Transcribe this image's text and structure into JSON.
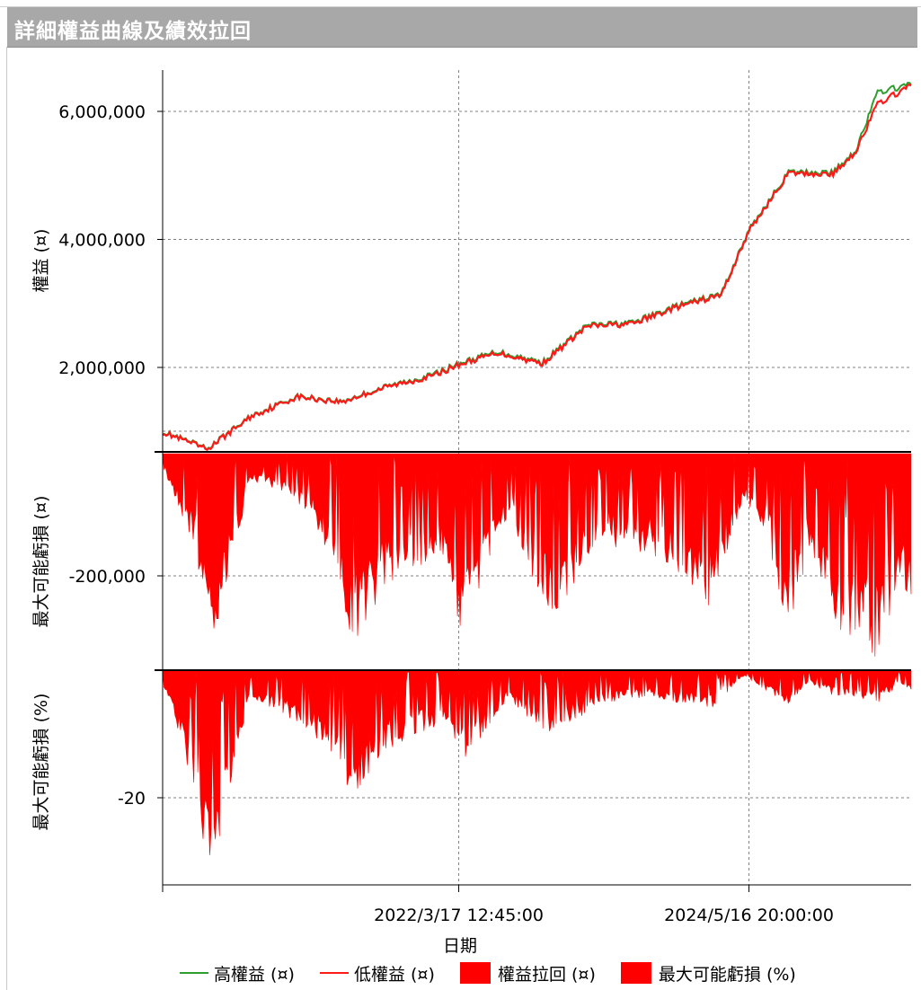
{
  "window": {
    "title": "詳細權益曲線及績效拉回"
  },
  "colors": {
    "high_equity": "#2e9e2e",
    "low_equity": "#ff1a1a",
    "drawdown_fill": "#ff0000",
    "grid": "#808080"
  },
  "chart_data": [
    {
      "type": "line",
      "panel": "equity",
      "ylabel": "權益 (¤)",
      "yticks": [
        "6,000,000",
        "4,000,000",
        "2,000,000"
      ],
      "ylim": [
        0,
        6650000
      ],
      "x": [
        "2020/1/2",
        "2020/5/1",
        "2020/9/1",
        "2021/1/4",
        "2021/5/3",
        "2021/9/1",
        "2022/1/3",
        "2022/3/17",
        "2022/7/1",
        "2022/11/1",
        "2023/3/1",
        "2023/7/3",
        "2023/11/1",
        "2024/3/1",
        "2024/5/16",
        "2024/9/2",
        "2025/1/2",
        "2025/3/3",
        "2025/5/1",
        "2025/8/1"
      ],
      "series": [
        {
          "name": "高權益 (¤)",
          "values": [
            1000000,
            730000,
            1250000,
            1550000,
            1470000,
            1700000,
            1880000,
            2060000,
            2250000,
            2080000,
            2660000,
            2700000,
            2960000,
            3150000,
            4150000,
            5050000,
            5050000,
            5400000,
            6300000,
            6420000
          ]
        },
        {
          "name": "低權益 (¤)",
          "values": [
            990000,
            720000,
            1240000,
            1540000,
            1460000,
            1690000,
            1860000,
            2040000,
            2230000,
            2060000,
            2640000,
            2680000,
            2940000,
            3130000,
            4130000,
            5030000,
            5020000,
            5380000,
            6120000,
            6400000
          ]
        }
      ]
    },
    {
      "type": "area",
      "panel": "drawdown_amount",
      "ylabel": "最大可能虧損 (¤)",
      "yticks": [
        "-200,000"
      ],
      "ylim": [
        -335000,
        0
      ],
      "series": [
        {
          "name": "權益拉回 (¤)",
          "x": [
            "2020/1/2",
            "2020/4/1",
            "2020/5/1",
            "2020/6/1",
            "2020/9/1",
            "2021/2/1",
            "2021/4/1",
            "2021/6/1",
            "2021/9/1",
            "2022/2/1",
            "2022/4/1",
            "2022/8/1",
            "2022/10/1",
            "2022/12/1",
            "2023/4/1",
            "2023/9/1",
            "2024/2/1",
            "2024/5/1",
            "2024/7/1",
            "2024/9/1",
            "2024/11/1",
            "2025/1/1",
            "2025/3/1",
            "2025/5/1",
            "2025/7/1",
            "2025/8/1"
          ],
          "values": [
            -20000,
            -150000,
            -300000,
            -260000,
            -40000,
            -90000,
            -160000,
            -300000,
            -210000,
            -170000,
            -290000,
            -90000,
            -200000,
            -260000,
            -140000,
            -160000,
            -240000,
            -70000,
            -120000,
            -280000,
            -140000,
            -290000,
            -300000,
            -320000,
            -200000,
            -230000
          ]
        }
      ]
    },
    {
      "type": "area",
      "panel": "drawdown_percent",
      "ylabel": "最大可能虧損 (%)",
      "yticks": [
        "-20"
      ],
      "ylim": [
        -33,
        0
      ],
      "xlabel": "日期",
      "xticks": [
        "2022/3/17 12:45:00",
        "2024/5/16 20:00:00"
      ],
      "series": [
        {
          "name": "最大可能虧損 (%)",
          "x": [
            "2020/1/2",
            "2020/3/1",
            "2020/5/1",
            "2020/6/1",
            "2020/9/1",
            "2021/2/1",
            "2021/4/1",
            "2021/6/1",
            "2021/9/1",
            "2022/2/1",
            "2022/4/1",
            "2022/8/1",
            "2022/10/1",
            "2022/12/1",
            "2023/4/1",
            "2023/9/1",
            "2024/2/1",
            "2024/5/1",
            "2024/7/1",
            "2024/9/1",
            "2024/11/1",
            "2025/1/1",
            "2025/3/1",
            "2025/5/1",
            "2025/7/1",
            "2025/8/1"
          ],
          "values": [
            -2,
            -12,
            -32,
            -26,
            -4,
            -9,
            -12,
            -19,
            -12,
            -8,
            -14,
            -4,
            -8,
            -10,
            -5,
            -4,
            -6,
            -1,
            -3,
            -5,
            -2,
            -4,
            -4,
            -5,
            -2,
            -3
          ]
        }
      ]
    }
  ],
  "legend": {
    "items": [
      {
        "label": "高權益 (¤)",
        "kind": "line",
        "color": "#2e9e2e"
      },
      {
        "label": "低權益 (¤)",
        "kind": "line",
        "color": "#ff1a1a"
      },
      {
        "label": "權益拉回 (¤)",
        "kind": "box",
        "color": "#ff0000"
      },
      {
        "label": "最大可能虧損 (%)",
        "kind": "box",
        "color": "#ff0000"
      }
    ]
  }
}
